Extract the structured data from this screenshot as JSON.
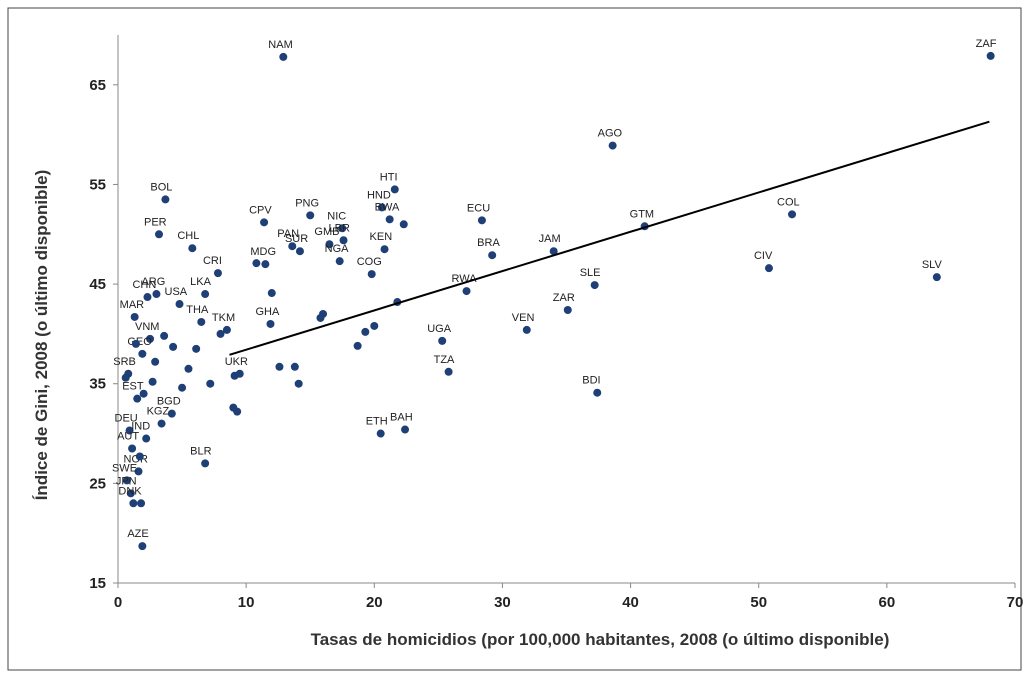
{
  "chart_data": {
    "type": "scatter",
    "x_label": "Tasas de homicidios (por 100,000 habitantes, 2008 (o último disponible)",
    "y_label": "Índice de Gini, 2008 (o último disponible)",
    "xlim": [
      0,
      70
    ],
    "xticks": [
      0,
      10,
      20,
      30,
      40,
      50,
      60,
      70
    ],
    "ylim": [
      15,
      70
    ],
    "yticks": [
      15,
      25,
      35,
      45,
      55,
      65
    ],
    "color": "#1f3f77",
    "trendline": {
      "x": [
        8.7,
        68
      ],
      "y": [
        37.9,
        61.3
      ],
      "color": "#000000"
    },
    "x": [
      12.9,
      68.1,
      38.6,
      3.7,
      28.4,
      52.6,
      41.1,
      34.0,
      29.2,
      50.8,
      63.9,
      37.2,
      27.2,
      35.1,
      31.9,
      25.3,
      25.8,
      37.4,
      20.5,
      22.4,
      6.8,
      1.9,
      21.6,
      20.6,
      15.0,
      11.4,
      17.5,
      3.2,
      5.8,
      7.8,
      6.8,
      11.5,
      11.9,
      20.8,
      21.2,
      17.6,
      16.5,
      14.2,
      13.6,
      17.3,
      19.8,
      3.0,
      8.5,
      6.5,
      9.5,
      2.3,
      1.3,
      0.8,
      1.5,
      4.8,
      2.5,
      1.9,
      0.9,
      1.1,
      1.6,
      2.2,
      0.7,
      1.0,
      3.4,
      4.2,
      1.2,
      1.8,
      2.7,
      5.5,
      7.2,
      9.3,
      9.0,
      12.6,
      13.8,
      14.1,
      18.7,
      19.3,
      20.0,
      21.8,
      22.3,
      16.0,
      15.8,
      5.0,
      6.1,
      1.4,
      0.6,
      2.0,
      1.7,
      2.9,
      3.6,
      4.3,
      9.1,
      8.0,
      10.8,
      12.0
    ],
    "y": [
      67.8,
      67.9,
      58.9,
      53.5,
      51.4,
      52.0,
      50.8,
      48.3,
      47.9,
      46.6,
      45.7,
      44.9,
      44.3,
      42.4,
      40.4,
      39.3,
      36.2,
      34.1,
      30.0,
      30.4,
      27.0,
      18.7,
      54.5,
      52.7,
      51.9,
      51.2,
      50.6,
      50.0,
      48.6,
      46.1,
      44.0,
      47.0,
      41.0,
      48.5,
      51.5,
      49.4,
      49.0,
      48.3,
      48.8,
      47.3,
      46.0,
      44.0,
      40.4,
      41.2,
      36.0,
      43.7,
      41.7,
      36.0,
      33.5,
      43.0,
      39.5,
      38.0,
      30.3,
      28.5,
      26.2,
      29.5,
      25.3,
      24.0,
      31.0,
      32.0,
      23.0,
      23.0,
      35.2,
      36.5,
      35.0,
      32.2,
      32.6,
      36.7,
      36.7,
      35.0,
      38.8,
      40.2,
      40.8,
      43.2,
      51.0,
      42.0,
      41.6,
      34.6,
      38.5,
      39.0,
      35.6,
      34.0,
      27.7,
      37.2,
      39.8,
      38.7,
      35.8,
      40.0,
      47.1,
      44.1
    ],
    "labels": [
      "NAM",
      "ZAF",
      "AGO",
      "BOL",
      "ECU",
      "COL",
      "GTM",
      "JAM",
      "BRA",
      "CIV",
      "SLV",
      "SLE",
      "RWA",
      "ZAR",
      "VEN",
      "UGA",
      "TZA",
      "BDI",
      "ETH",
      "BAH",
      "BLR",
      "AZE",
      "HTI",
      "HND",
      "PNG",
      "CPV",
      "NIC",
      "PER",
      "CHL",
      "CRI",
      "LKA",
      "MDG",
      "GHA",
      "KEN",
      "BWA",
      "LBR",
      "GMB",
      "SUR",
      "PAN",
      "NGA",
      "COG",
      "ARG",
      "TKM",
      "THA",
      "UKR",
      "CHN",
      "MAR",
      "SRB",
      "EST",
      "USA",
      "VNM",
      "GEO",
      "DEU",
      "AUT",
      "NOR",
      "IND",
      "SWE",
      "JPN",
      "KGZ",
      "BGD",
      "DNK",
      null,
      null,
      null,
      null,
      null,
      null,
      null,
      null,
      null,
      null,
      null,
      null,
      null,
      null,
      null,
      null,
      null,
      null,
      null,
      null,
      null,
      null,
      null,
      null,
      null,
      null,
      null,
      null,
      null
    ]
  }
}
